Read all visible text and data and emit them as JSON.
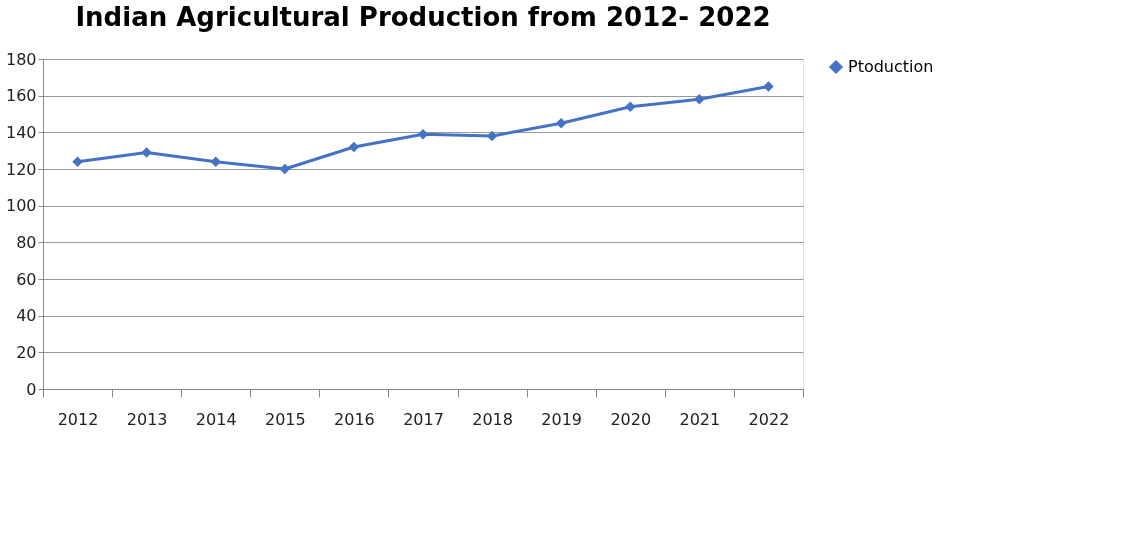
{
  "chart_data": {
    "type": "line",
    "title": "Indian Agricultural Production from 2012- 2022",
    "categories": [
      "2012",
      "2013",
      "2014",
      "2015",
      "2016",
      "2017",
      "2018",
      "2019",
      "2020",
      "2021",
      "2022"
    ],
    "series": [
      {
        "name": "Ptoduction",
        "color": "#4472c4",
        "values": [
          124,
          129,
          124,
          120,
          132,
          139,
          138,
          145,
          154,
          158,
          165
        ]
      }
    ],
    "ylim": [
      0,
      180
    ],
    "yticks": [
      0,
      20,
      40,
      60,
      80,
      100,
      120,
      140,
      160,
      180
    ],
    "grid": "y",
    "legend": "right",
    "marker": "diamond",
    "line_style": "solid"
  }
}
